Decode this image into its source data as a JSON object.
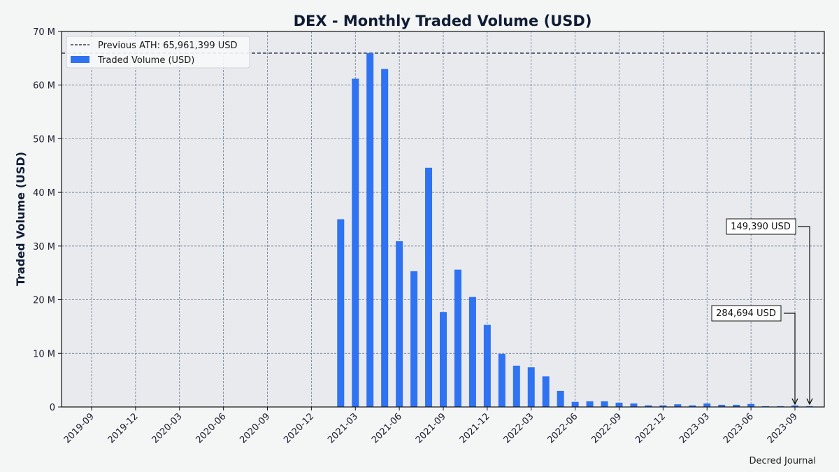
{
  "chart_data": {
    "type": "bar",
    "title": "DEX - Monthly Traded Volume (USD)",
    "xlabel": "",
    "ylabel": "Traded Volume (USD)",
    "ylim": [
      0,
      70000000
    ],
    "y_ticks": [
      0,
      10000000,
      20000000,
      30000000,
      40000000,
      50000000,
      60000000,
      70000000
    ],
    "y_tick_labels": [
      "0",
      "10 M",
      "20 M",
      "30 M",
      "40 M",
      "50 M",
      "60 M",
      "70 M"
    ],
    "x_tick_labels": [
      "2019-09",
      "2019-12",
      "2020-03",
      "2020-06",
      "2020-09",
      "2020-12",
      "2021-03",
      "2021-06",
      "2021-09",
      "2021-12",
      "2022-03",
      "2022-06",
      "2022-09",
      "2022-12",
      "2023-03",
      "2023-06",
      "2023-09"
    ],
    "grid": true,
    "legend_position": "upper left",
    "legend": [
      "Previous ATH: 65,961,399 USD",
      "Traded Volume (USD)"
    ],
    "bar_color": "#2f72f2",
    "reference_line": {
      "label": "Previous ATH: 65,961,399 USD",
      "value": 65961399,
      "style": "dashed",
      "color": "#0f1c33"
    },
    "categories": [
      "2021-02",
      "2021-03",
      "2021-04",
      "2021-05",
      "2021-06",
      "2021-07",
      "2021-08",
      "2021-09",
      "2021-10",
      "2021-11",
      "2021-12",
      "2022-01",
      "2022-02",
      "2022-03",
      "2022-04",
      "2022-05",
      "2022-06",
      "2022-07",
      "2022-08",
      "2022-09",
      "2022-10",
      "2022-11",
      "2022-12",
      "2023-01",
      "2023-02",
      "2023-03",
      "2023-04",
      "2023-05",
      "2023-06",
      "2023-07",
      "2023-08",
      "2023-09",
      "2023-10"
    ],
    "series": [
      {
        "name": "Traded Volume (USD)",
        "values": [
          35000000,
          61200000,
          65961399,
          63000000,
          30900000,
          25300000,
          44600000,
          17700000,
          25600000,
          20500000,
          15300000,
          9900000,
          7700000,
          7400000,
          5700000,
          3000000,
          950000,
          1050000,
          1050000,
          800000,
          650000,
          300000,
          300000,
          500000,
          300000,
          650000,
          400000,
          400000,
          550000,
          150000,
          150000,
          284694,
          149390
        ]
      }
    ],
    "annotations": [
      {
        "text": "284,694 USD",
        "target": "2023-09",
        "value": 284694
      },
      {
        "text": "149,390 USD",
        "target": "2023-10",
        "value": 149390
      }
    ],
    "credit": "Decred Journal"
  }
}
